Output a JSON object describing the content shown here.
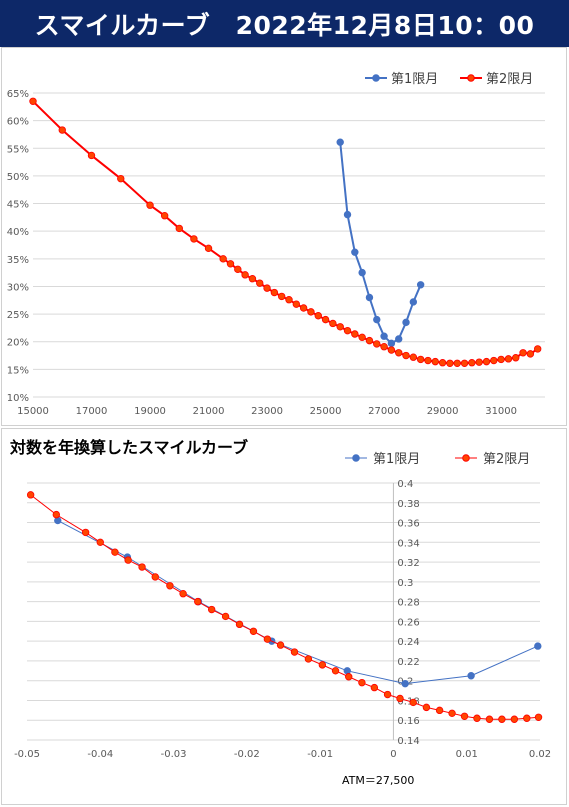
{
  "header": {
    "title": "スマイルカーブ　2022年12月8日10：00"
  },
  "chart2_title": "対数を年換算したスマイルカーブ",
  "atm_note": "ATM＝27,500",
  "chart_data": [
    {
      "type": "line",
      "title": "",
      "xlabel": "",
      "ylabel": "",
      "xlim": [
        15000,
        32500
      ],
      "ylim": [
        0.1,
        0.65
      ],
      "x_ticks": [
        15000,
        17000,
        19000,
        21000,
        23000,
        25000,
        27000,
        29000,
        31000
      ],
      "x_tick_labels": [
        "15000",
        "17000",
        "19000",
        "21000",
        "23000",
        "25000",
        "27000",
        "29000",
        "31000"
      ],
      "y_ticks": [
        0.1,
        0.15,
        0.2,
        0.25,
        0.3,
        0.35,
        0.4,
        0.45,
        0.5,
        0.55,
        0.6,
        0.65
      ],
      "y_tick_labels": [
        "10%",
        "15%",
        "20%",
        "25%",
        "30%",
        "35%",
        "40%",
        "45%",
        "50%",
        "55%",
        "60%",
        "65%"
      ],
      "grid": "horizontal",
      "legend_position": "top-right",
      "series": [
        {
          "name": "第1限月",
          "color": "#4472c4",
          "x": [
            25500,
            25750,
            26000,
            26250,
            26500,
            26750,
            27000,
            27250,
            27500,
            27750,
            28000,
            28250,
            28500
          ],
          "y": [
            0.561,
            0.43,
            0.362,
            0.325,
            0.28,
            0.24,
            0.21,
            0.197,
            0.205,
            0.235,
            0.272,
            0.303,
            null
          ]
        },
        {
          "name": "第2限月",
          "color": "#ff0000",
          "marker_fill": "#ff4500",
          "x": [
            15000,
            16000,
            17000,
            18000,
            19000,
            19500,
            20000,
            20500,
            21000,
            21500,
            21750,
            22000,
            22250,
            22500,
            22750,
            23000,
            23250,
            23500,
            23750,
            24000,
            24250,
            24500,
            24750,
            25000,
            25250,
            25500,
            25750,
            26000,
            26250,
            26500,
            26750,
            27000,
            27250,
            27500,
            27750,
            28000,
            28250,
            28500,
            28750,
            29000,
            29250,
            29500,
            29750,
            30000,
            30250,
            30500,
            30750,
            31000,
            31250,
            31500,
            31750,
            32000,
            32250
          ],
          "y": [
            0.635,
            0.583,
            0.537,
            0.495,
            0.447,
            0.428,
            0.405,
            0.386,
            0.369,
            0.35,
            0.341,
            0.331,
            0.321,
            0.314,
            0.306,
            0.297,
            0.289,
            0.282,
            0.276,
            0.268,
            0.261,
            0.254,
            0.247,
            0.24,
            0.233,
            0.227,
            0.22,
            0.214,
            0.208,
            0.202,
            0.196,
            0.191,
            0.185,
            0.18,
            0.175,
            0.172,
            0.168,
            0.166,
            0.164,
            0.162,
            0.161,
            0.161,
            0.161,
            0.162,
            0.163,
            0.164,
            0.166,
            0.168,
            0.169,
            0.171,
            0.18,
            0.178,
            0.187
          ]
        }
      ]
    },
    {
      "type": "line",
      "title": "対数を年換算したスマイルカーブ",
      "xlabel": "",
      "ylabel": "",
      "xlim": [
        -0.05,
        0.02
      ],
      "ylim": [
        0.14,
        0.4
      ],
      "x_ticks": [
        -0.05,
        -0.04,
        -0.03,
        -0.02,
        -0.01,
        0,
        0.01,
        0.02
      ],
      "x_tick_labels": [
        "-0.05",
        "-0.04",
        "-0.03",
        "-0.02",
        "-0.01",
        "0",
        "0.01",
        "0.02"
      ],
      "y_ticks": [
        0.14,
        0.16,
        0.18,
        0.2,
        0.22,
        0.24,
        0.26,
        0.28,
        0.3,
        0.32,
        0.34,
        0.36,
        0.38,
        0.4
      ],
      "y_tick_labels": [
        "0.14",
        "0.16",
        "0.18",
        "0.2",
        "0.22",
        "0.24",
        "0.26",
        "0.28",
        "0.3",
        "0.32",
        "0.34",
        "0.36",
        "0.38",
        "0.4"
      ],
      "grid": "horizontal",
      "legend_position": "top-right",
      "series": [
        {
          "name": "第1限月",
          "color": "#4472c4",
          "x": [
            -0.0458,
            -0.0363,
            -0.0266,
            -0.0166,
            -0.0063,
            0.0016,
            0.0106,
            0.0197
          ],
          "y": [
            0.362,
            0.325,
            0.28,
            0.24,
            0.21,
            0.197,
            0.205,
            0.235
          ]
        },
        {
          "name": "第2限月",
          "color": "#ff0000",
          "marker_fill": "#ff4500",
          "x": [
            -0.0495,
            -0.046,
            -0.042,
            -0.04,
            -0.038,
            -0.0362,
            -0.0343,
            -0.0325,
            -0.0305,
            -0.0287,
            -0.0267,
            -0.0248,
            -0.0229,
            -0.021,
            -0.0191,
            -0.0172,
            -0.0154,
            -0.0135,
            -0.0116,
            -0.0097,
            -0.0079,
            -0.0061,
            -0.0043,
            -0.0026,
            -0.0008,
            0.0009,
            0.0027,
            0.0045,
            0.0063,
            0.008,
            0.0097,
            0.0114,
            0.0131,
            0.0148,
            0.0165,
            0.0182,
            0.0198
          ],
          "y": [
            0.388,
            0.368,
            0.35,
            0.34,
            0.33,
            0.322,
            0.315,
            0.305,
            0.296,
            0.288,
            0.28,
            0.272,
            0.265,
            0.257,
            0.25,
            0.242,
            0.236,
            0.229,
            0.222,
            0.216,
            0.21,
            0.204,
            0.198,
            0.193,
            0.186,
            0.182,
            0.178,
            0.173,
            0.17,
            0.167,
            0.164,
            0.162,
            0.161,
            0.161,
            0.161,
            0.162,
            0.163
          ]
        }
      ]
    }
  ]
}
